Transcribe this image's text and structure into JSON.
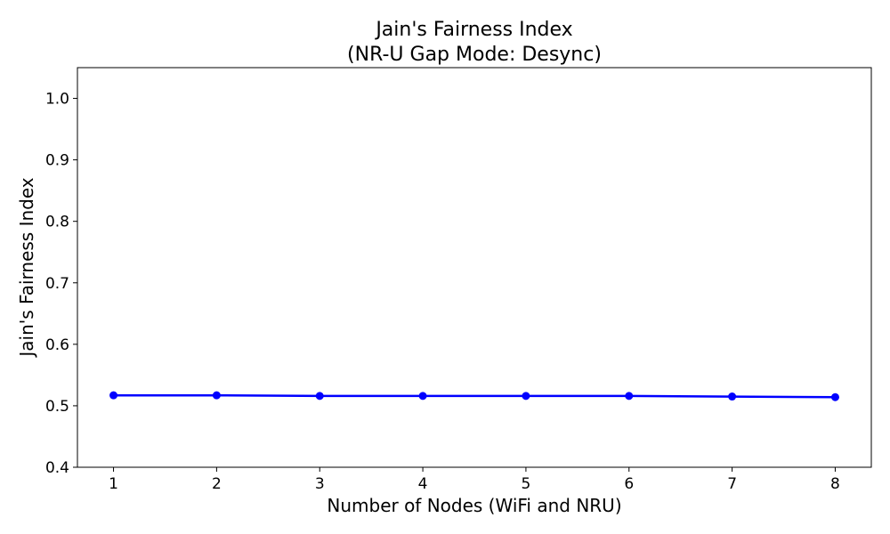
{
  "chart_data": {
    "type": "line",
    "title": "Jain's Fairness Index",
    "subtitle": "(NR-U Gap Mode: Desync)",
    "xlabel": "Number of Nodes (WiFi and NRU)",
    "ylabel": "Jain's Fairness Index",
    "xlim": [
      0.65,
      8.35
    ],
    "ylim": [
      0.4,
      1.05
    ],
    "x_ticks": [
      1,
      2,
      3,
      4,
      5,
      6,
      7,
      8
    ],
    "y_ticks": [
      "0.4",
      "0.5",
      "0.6",
      "0.7",
      "0.8",
      "0.9",
      "1.0"
    ],
    "grid": false,
    "legend": "none",
    "series": [
      {
        "color": "#0000ff",
        "marker": "circle",
        "x": [
          1,
          2,
          3,
          4,
          5,
          6,
          7,
          8
        ],
        "y": [
          0.517,
          0.517,
          0.516,
          0.516,
          0.516,
          0.516,
          0.515,
          0.514
        ]
      }
    ]
  }
}
